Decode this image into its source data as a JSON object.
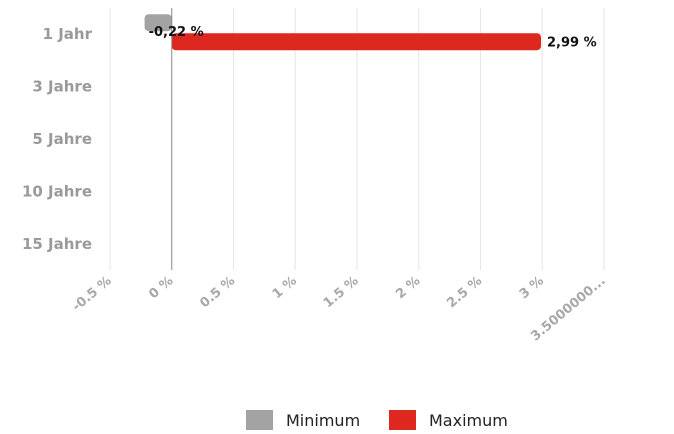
{
  "chart_data": {
    "type": "bar",
    "orientation": "horizontal",
    "categories": [
      "1 Jahr",
      "3 Jahre",
      "5 Jahre",
      "10 Jahre",
      "15 Jahre"
    ],
    "series": [
      {
        "name": "Minimum",
        "color": "#a3a3a3",
        "values": [
          -0.22,
          null,
          null,
          null,
          null
        ],
        "labels": [
          "-0,22 %",
          "",
          "",
          "",
          ""
        ]
      },
      {
        "name": "Maximum",
        "color": "#dc281e",
        "values": [
          2.99,
          null,
          null,
          null,
          null
        ],
        "labels": [
          "2,99 %",
          "",
          "",
          "",
          ""
        ]
      }
    ],
    "xticks": [
      -0.5,
      0,
      0.5,
      1,
      1.5,
      2,
      2.5,
      3,
      3.5
    ],
    "xtick_labels": [
      "-0.5 %",
      "0 %",
      "0.5 %",
      "1 %",
      "1.5 %",
      "2 %",
      "2.5 %",
      "3 %",
      "3.5000000..."
    ],
    "xlim": [
      -0.5,
      3.5
    ],
    "grid": true,
    "legend_position": "bottom"
  }
}
